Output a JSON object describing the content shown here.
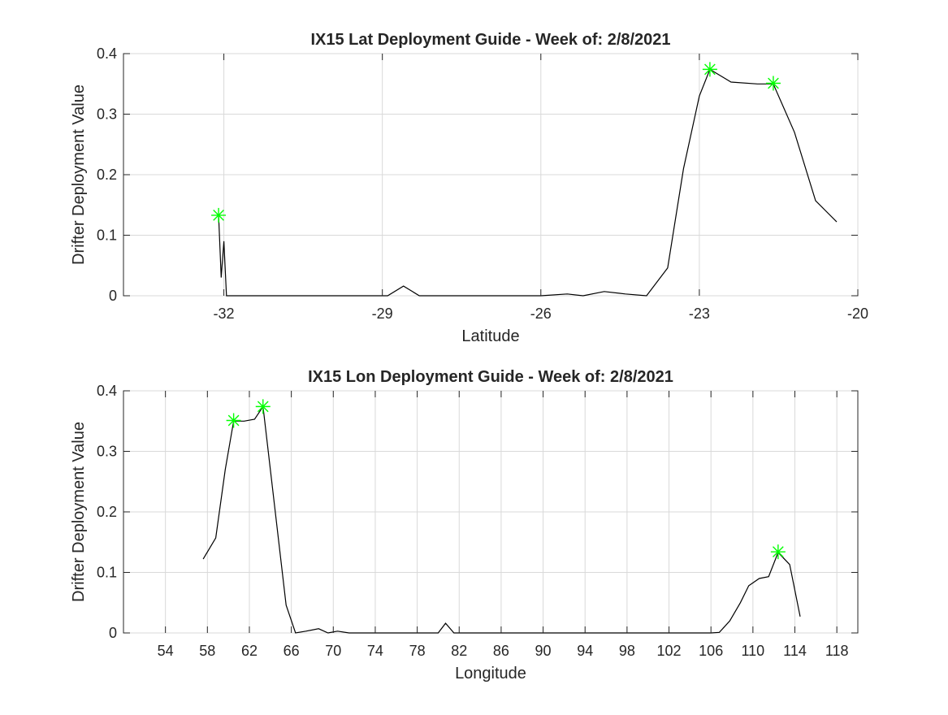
{
  "chart_data": [
    {
      "type": "line",
      "title": "IX15 Lat Deployment Guide - Week of: 2/8/2021",
      "xlabel": "Latitude",
      "ylabel": "Drifter Deployment Value",
      "xlim": [
        -33.9,
        -20
      ],
      "ylim": [
        0,
        0.4
      ],
      "xticks": [
        -32,
        -29,
        -26,
        -23,
        -20
      ],
      "xtick_labels": [
        "-32",
        "-29",
        "-26",
        "-23",
        "-20"
      ],
      "yticks": [
        0,
        0.1,
        0.2,
        0.3,
        0.4
      ],
      "ytick_labels": [
        "0",
        "0.1",
        "0.2",
        "0.3",
        "0.4"
      ],
      "grid": true,
      "line_color": "#000000",
      "marker_color": "#00ff00",
      "series": [
        {
          "x": [
            -32.1,
            -32.05,
            -32.0,
            -31.95,
            -28.9,
            -28.6,
            -28.3,
            -26.0,
            -25.5,
            -25.2,
            -24.8,
            -24.4,
            -24.0,
            -23.6,
            -23.3,
            -23.0,
            -22.8,
            -22.4,
            -21.9,
            -21.6,
            -21.2,
            -20.8,
            -20.4
          ],
          "y": [
            0.133,
            0.03,
            0.09,
            0.0,
            0.0,
            0.016,
            0.0,
            0.0,
            0.003,
            0.0,
            0.007,
            0.003,
            0.0,
            0.046,
            0.21,
            0.33,
            0.374,
            0.353,
            0.35,
            0.35,
            0.27,
            0.157,
            0.122
          ]
        }
      ],
      "markers": {
        "x": [
          -32.1,
          -22.8,
          -21.6
        ],
        "y": [
          0.133,
          0.374,
          0.351
        ]
      }
    },
    {
      "type": "line",
      "title": "IX15 Lon Deployment Guide - Week of: 2/8/2021",
      "xlabel": "Longitude",
      "ylabel": "Drifter Deployment Value",
      "xlim": [
        50,
        120
      ],
      "ylim": [
        0,
        0.4
      ],
      "xticks": [
        54,
        58,
        62,
        66,
        70,
        74,
        78,
        82,
        86,
        90,
        94,
        98,
        102,
        106,
        110,
        114,
        118
      ],
      "xtick_labels": [
        "54",
        "58",
        "62",
        "66",
        "70",
        "74",
        "78",
        "82",
        "86",
        "90",
        "94",
        "98",
        "102",
        "106",
        "110",
        "114",
        "118"
      ],
      "yticks": [
        0,
        0.1,
        0.2,
        0.3,
        0.4
      ],
      "ytick_labels": [
        "0",
        "0.1",
        "0.2",
        "0.3",
        "0.4"
      ],
      "grid": true,
      "line_color": "#000000",
      "marker_color": "#00ff00",
      "series": [
        {
          "x": [
            57.6,
            58.8,
            59.7,
            60.5,
            61.5,
            62.5,
            63.3,
            64.4,
            65.5,
            66.4,
            67.4,
            68.6,
            69.5,
            70.4,
            71.5,
            72.5,
            80.0,
            80.7,
            81.5,
            82.5,
            106.0,
            106.8,
            107.8,
            108.8,
            109.6,
            110.6,
            111.5,
            112.4,
            113.5,
            114.5
          ],
          "y": [
            0.122,
            0.157,
            0.27,
            0.35,
            0.35,
            0.353,
            0.374,
            0.21,
            0.046,
            0.0,
            0.003,
            0.007,
            0.0,
            0.003,
            0.0,
            0.0,
            0.0,
            0.016,
            0.0,
            0.0,
            0.0,
            0.001,
            0.02,
            0.05,
            0.078,
            0.09,
            0.093,
            0.133,
            0.113,
            0.027
          ]
        }
      ],
      "markers": {
        "x": [
          60.5,
          63.3,
          112.4
        ],
        "y": [
          0.351,
          0.374,
          0.134
        ]
      }
    }
  ]
}
